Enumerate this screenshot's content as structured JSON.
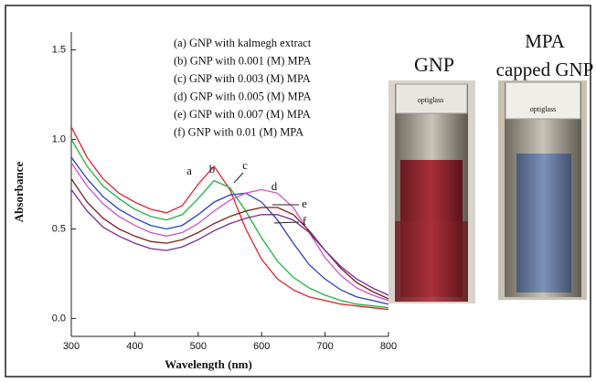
{
  "chart_data": {
    "type": "line",
    "x_label": "Wavelength (nm)",
    "y_label": "Absorbance",
    "x": [
      300,
      325,
      350,
      375,
      400,
      425,
      450,
      475,
      500,
      525,
      550,
      575,
      600,
      625,
      650,
      675,
      700,
      725,
      750,
      775,
      800
    ],
    "xlim": [
      300,
      800
    ],
    "xticks": [
      300,
      400,
      500,
      600,
      700,
      800
    ],
    "ylim": [
      -0.1,
      1.6
    ],
    "yticks": [
      {
        "value": 0,
        "label": "0.0"
      },
      0.5,
      {
        "value": 1,
        "label": "1.0"
      },
      1.5
    ],
    "series": [
      {
        "name": "(a) GNP with kalmegh extract",
        "label": "a",
        "color": "#e0202a",
        "values": [
          1.07,
          0.9,
          0.78,
          0.7,
          0.65,
          0.61,
          0.59,
          0.63,
          0.75,
          0.85,
          0.72,
          0.5,
          0.33,
          0.22,
          0.16,
          0.12,
          0.1,
          0.08,
          0.07,
          0.06,
          0.05
        ]
      },
      {
        "name": "(b) GNP with 0.001 (M) MPA",
        "label": "b",
        "color": "#22b040",
        "values": [
          1.0,
          0.85,
          0.74,
          0.67,
          0.61,
          0.57,
          0.55,
          0.58,
          0.67,
          0.77,
          0.73,
          0.6,
          0.45,
          0.32,
          0.23,
          0.17,
          0.13,
          0.1,
          0.08,
          0.07,
          0.06
        ]
      },
      {
        "name": "(c) GNP with 0.003 (M) MPA",
        "label": "c",
        "color": "#2a3fc0",
        "values": [
          0.9,
          0.78,
          0.68,
          0.61,
          0.56,
          0.52,
          0.5,
          0.52,
          0.58,
          0.65,
          0.69,
          0.7,
          0.65,
          0.55,
          0.42,
          0.3,
          0.22,
          0.16,
          0.12,
          0.1,
          0.08
        ]
      },
      {
        "name": "(d) GNP with 0.005 (M) MPA",
        "label": "d",
        "color": "#d050c8",
        "values": [
          0.87,
          0.74,
          0.64,
          0.57,
          0.52,
          0.48,
          0.46,
          0.48,
          0.53,
          0.6,
          0.66,
          0.7,
          0.72,
          0.7,
          0.62,
          0.48,
          0.34,
          0.24,
          0.17,
          0.13,
          0.1
        ]
      },
      {
        "name": "(e) GNP with 0.007 (M) MPA",
        "label": "e",
        "color": "#7a1e1e",
        "values": [
          0.78,
          0.65,
          0.56,
          0.5,
          0.46,
          0.43,
          0.42,
          0.44,
          0.48,
          0.53,
          0.57,
          0.6,
          0.62,
          0.62,
          0.58,
          0.49,
          0.38,
          0.28,
          0.2,
          0.15,
          0.11
        ]
      },
      {
        "name": "(f) GNP with 0.01 (M) MPA",
        "label": "f",
        "color": "#7a2a9a",
        "values": [
          0.72,
          0.6,
          0.51,
          0.46,
          0.42,
          0.39,
          0.38,
          0.4,
          0.44,
          0.49,
          0.53,
          0.56,
          0.58,
          0.58,
          0.55,
          0.48,
          0.38,
          0.29,
          0.22,
          0.17,
          0.13
        ]
      }
    ]
  },
  "photos": {
    "left_label": "GNP",
    "right_label": [
      "MPA",
      "capped GNP"
    ],
    "cuvette_text": "optiglass"
  }
}
